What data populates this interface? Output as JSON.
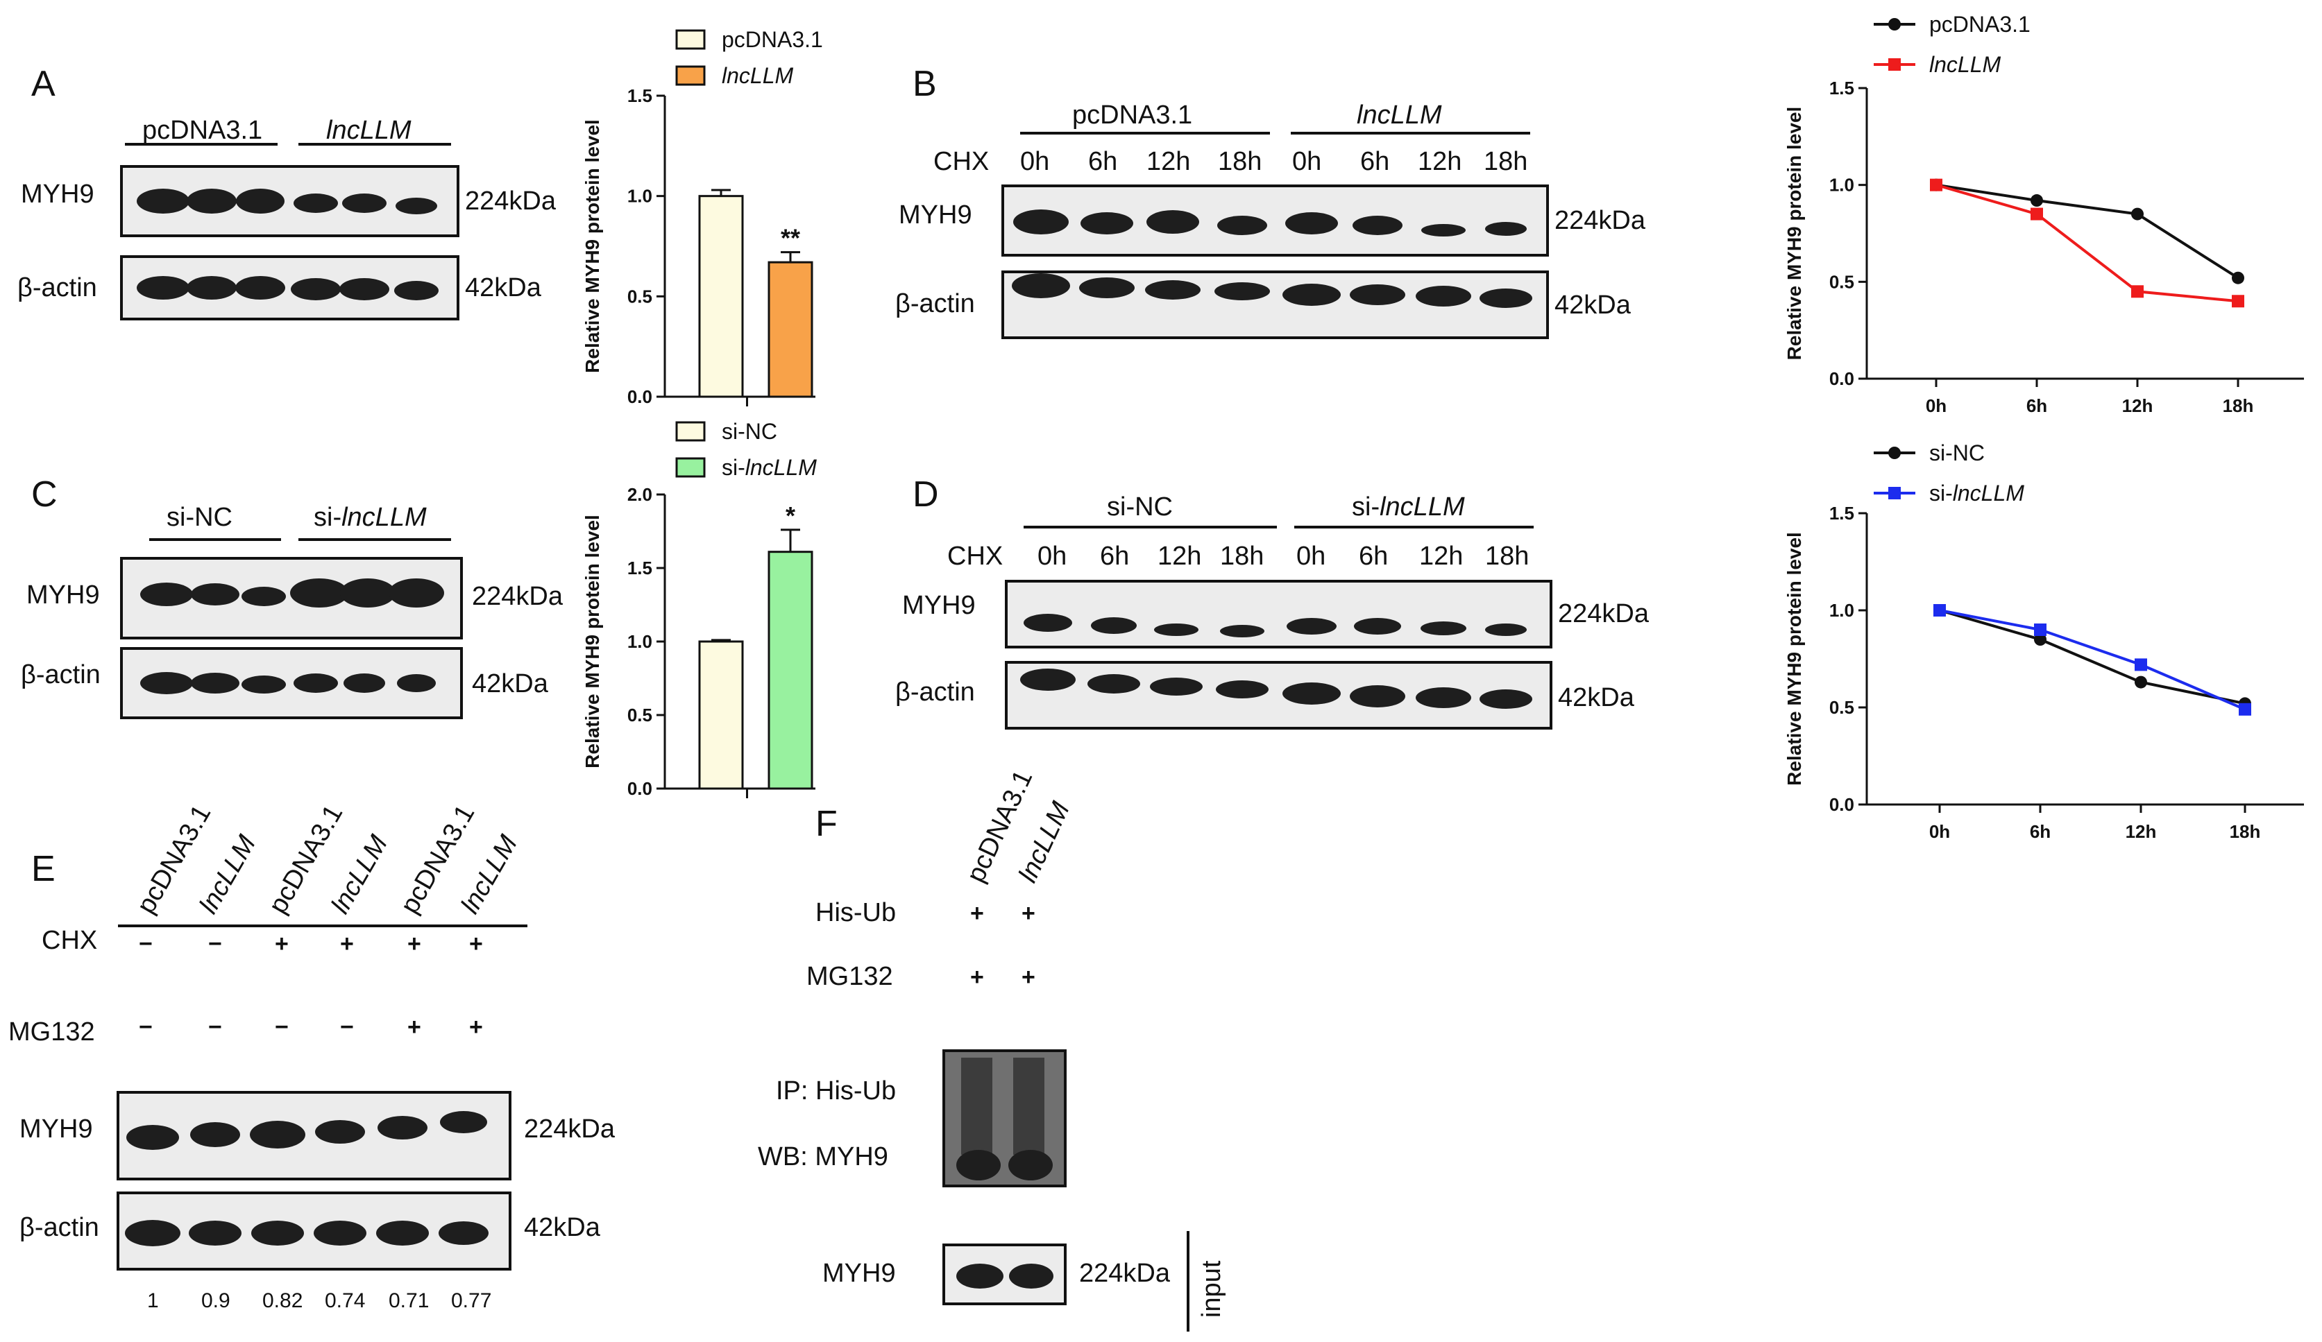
{
  "panels": {
    "a": "A",
    "b": "B",
    "c": "C",
    "d": "D",
    "e": "E",
    "f": "F"
  },
  "blot_labels": {
    "pcdna": "pcDNA3.1",
    "lnc": "lncLLM",
    "si_nc": "si-NC",
    "si_prefix": "si-",
    "myh9": "MYH9",
    "bactin": "β-actin",
    "kda224": "224kDa",
    "kda42": "42kDa",
    "chx": "CHX",
    "mg132": "MG132",
    "his_ub": "His-Ub",
    "ip": "IP: His-Ub",
    "wb": "WB: MYH9",
    "input": "input",
    "plus": "+",
    "minus": "−"
  },
  "time_labels": [
    "0h",
    "6h",
    "12h",
    "18h"
  ],
  "panel_e": {
    "samples": [
      "pcDNA3.1",
      "lncLLM",
      "pcDNA3.1",
      "lncLLM",
      "pcDNA3.1",
      "lncLLM"
    ],
    "chx": [
      "−",
      "−",
      "+",
      "+",
      "+",
      "+"
    ],
    "mg132": [
      "−",
      "−",
      "−",
      "−",
      "+",
      "+"
    ],
    "quant": [
      "1",
      "0.9",
      "0.82",
      "0.74",
      "0.71",
      "0.77"
    ]
  },
  "chart_data": [
    {
      "id": "A-bar",
      "type": "bar",
      "categories": [
        "pcDNA3.1",
        "lncLLM"
      ],
      "values": [
        1.0,
        0.67
      ],
      "errors": [
        0.03,
        0.05
      ],
      "significance": [
        "",
        "**"
      ],
      "colors": [
        "#fdfae0",
        "#f8a249"
      ],
      "ylabel": "Relative MYH9 protein  level",
      "ylim": [
        0,
        1.5
      ],
      "yticks": [
        "0.0",
        "0.5",
        "1.0",
        "1.5"
      ],
      "legend": [
        "pcDNA3.1",
        "lncLLM"
      ]
    },
    {
      "id": "C-bar",
      "type": "bar",
      "categories": [
        "si-NC",
        "si-lncLLM"
      ],
      "values": [
        1.0,
        1.61
      ],
      "errors": [
        0.01,
        0.15
      ],
      "significance": [
        "",
        "*"
      ],
      "colors": [
        "#fdfae0",
        "#98f19f"
      ],
      "ylabel": "Relative MYH9 protein  level",
      "ylim": [
        0,
        2.0
      ],
      "yticks": [
        "0.0",
        "0.5",
        "1.0",
        "1.5",
        "2.0"
      ],
      "legend": [
        "si-NC",
        "si-lncLLM"
      ]
    },
    {
      "id": "B-line",
      "type": "line",
      "x": [
        "0h",
        "6h",
        "12h",
        "18h"
      ],
      "series": [
        {
          "name": "pcDNA3.1",
          "values": [
            1.0,
            0.92,
            0.85,
            0.52
          ],
          "color": "#111111",
          "marker": "circle"
        },
        {
          "name": "lncLLM",
          "values": [
            1.0,
            0.85,
            0.45,
            0.4
          ],
          "color": "#ee1c1c",
          "marker": "square"
        }
      ],
      "ylabel": "Relative MYH9 protein  level",
      "ylim": [
        0,
        1.5
      ],
      "yticks": [
        "0.0",
        "0.5",
        "1.0",
        "1.5"
      ]
    },
    {
      "id": "D-line",
      "type": "line",
      "x": [
        "0h",
        "6h",
        "12h",
        "18h"
      ],
      "series": [
        {
          "name": "si-NC",
          "values": [
            1.0,
            0.85,
            0.63,
            0.52
          ],
          "color": "#111111",
          "marker": "circle"
        },
        {
          "name": "si-lncLLM",
          "values": [
            1.0,
            0.9,
            0.72,
            0.49
          ],
          "color": "#1c2cee",
          "marker": "square"
        }
      ],
      "ylabel": "Relative MYH9 protein  level",
      "ylim": [
        0,
        1.5
      ],
      "yticks": [
        "0.0",
        "0.5",
        "1.0",
        "1.5"
      ]
    }
  ]
}
